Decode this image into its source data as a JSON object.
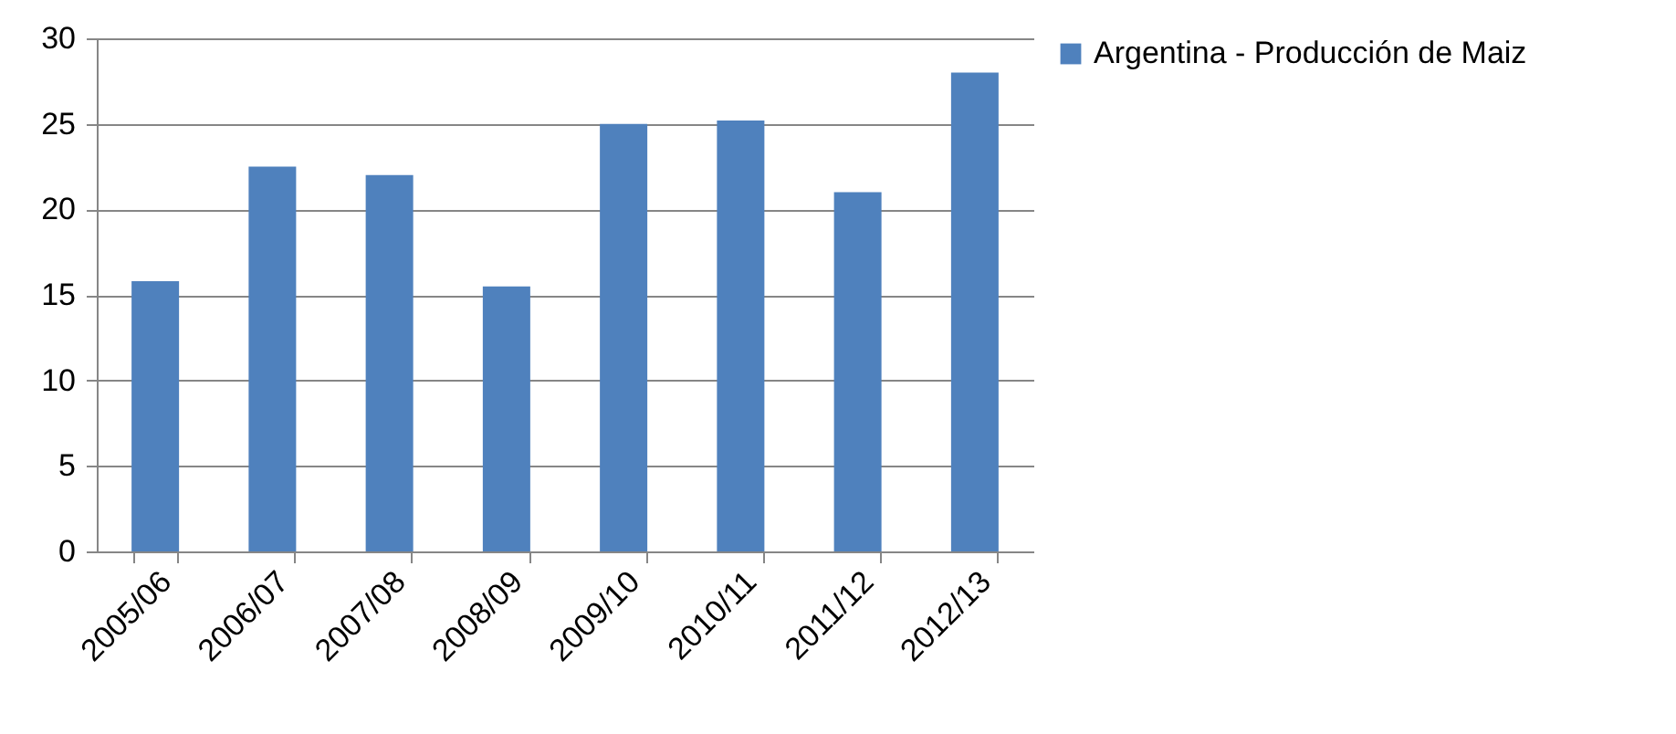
{
  "chart_data": {
    "type": "bar",
    "categories": [
      "2005/06",
      "2006/07",
      "2007/08",
      "2008/09",
      "2009/10",
      "2010/11",
      "2011/12",
      "2012/13"
    ],
    "series": [
      {
        "name": "Argentina - Producción de Maiz",
        "color": "#4f81bd",
        "values": [
          15.8,
          22.5,
          22.0,
          15.5,
          25.0,
          25.2,
          21.0,
          28.0
        ]
      }
    ],
    "ylim": [
      0,
      30
    ],
    "yticks": [
      0,
      5,
      10,
      15,
      20,
      25,
      30
    ],
    "grid": "y",
    "legend": "right"
  }
}
